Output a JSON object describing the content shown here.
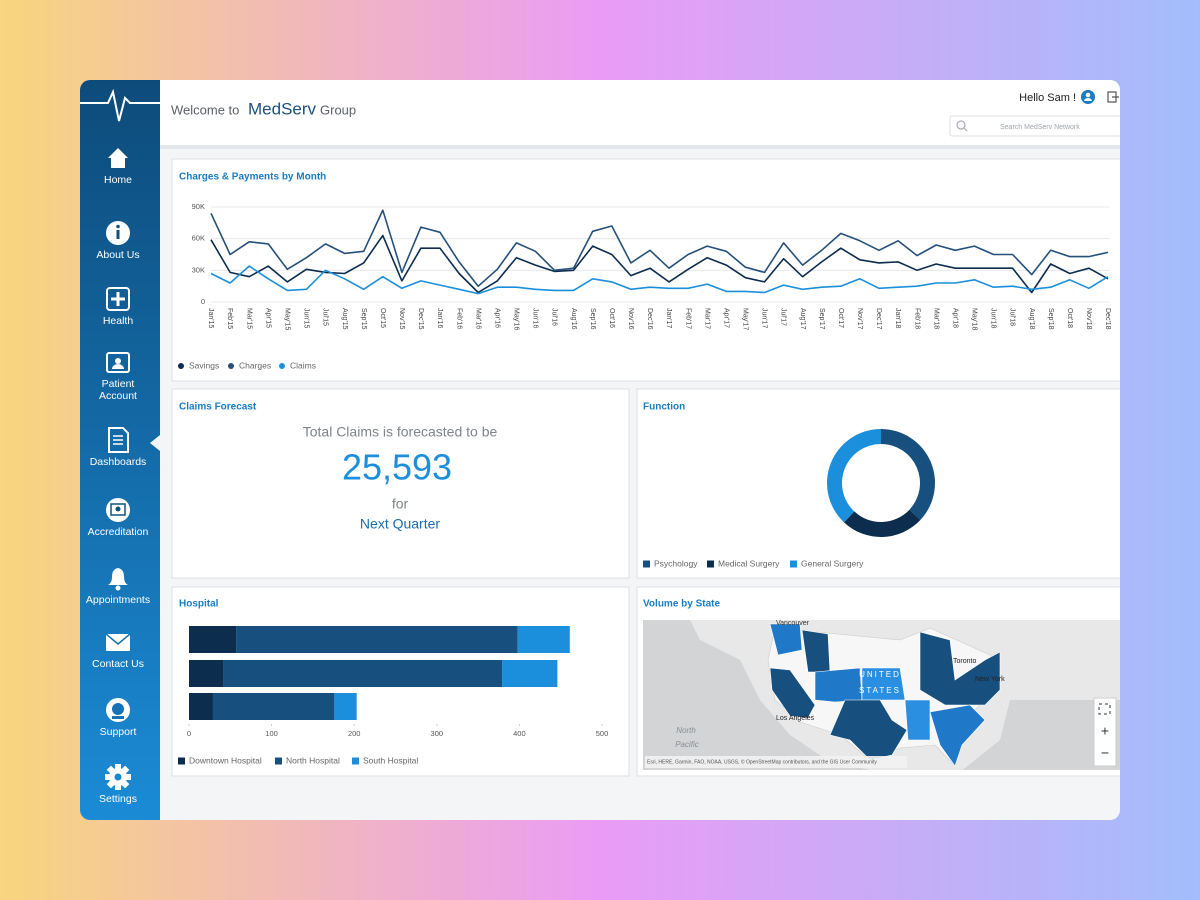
{
  "header": {
    "welcome": "Welcome to",
    "brand": "MedServ",
    "brand_suffix": "Group",
    "greeting": "Hello Sam !",
    "search_placeholder": "Search MedServ Network"
  },
  "sidebar": {
    "items": [
      [
        "Home"
      ],
      [
        "About Us"
      ],
      [
        "Health"
      ],
      [
        "Patient",
        "Account"
      ],
      [
        "Dashboards"
      ],
      [
        "Accreditation"
      ],
      [
        "Appointments"
      ],
      [
        "Contact Us"
      ],
      [
        "Support"
      ],
      [
        "Settings"
      ]
    ]
  },
  "forecast": {
    "title": "Claims Forecast",
    "lead": "Total Claims is forecasted to be",
    "value": "25,593",
    "connector": "for",
    "period": "Next Quarter"
  },
  "map": {
    "title": "Volume by State",
    "labels": [
      "Vancouver",
      "UNITED",
      "STATES",
      "Toronto",
      "New York",
      "Los Angeles",
      "North",
      "Pacific"
    ],
    "attribution": "Esri, HERE, Garmin, FAO, NOAA, USGS, © OpenStreetMap contributors, and the GIS User Community",
    "controls": [
      "+",
      "−"
    ]
  },
  "chart_data": [
    {
      "type": "line",
      "title": "Charges & Payments by Month",
      "categories": [
        "Jan'15",
        "Feb'15",
        "Mar'15",
        "Apr'15",
        "May'15",
        "Jun'15",
        "Jul'15",
        "Aug'15",
        "Sep'15",
        "Oct'15",
        "Nov'15",
        "Dec'15",
        "Jan'16",
        "Feb'16",
        "Mar'16",
        "Apr'16",
        "May'16",
        "Jun'16",
        "Jul'16",
        "Aug'16",
        "Sep'16",
        "Oct'16",
        "Nov'16",
        "Dec'16",
        "Jan'17",
        "Feb'17",
        "Mar'17",
        "Apr'17",
        "May'17",
        "Jun'17",
        "Jul'17",
        "Aug'17",
        "Sep'17",
        "Oct'17",
        "Nov'17",
        "Dec'17",
        "Jan'18",
        "Feb'18",
        "Mar'18",
        "Apr'18",
        "May'18",
        "Jun'18",
        "Jul'18",
        "Aug'18",
        "Sep'18",
        "Oct'18",
        "Nov'18",
        "Dec'18"
      ],
      "series": [
        {
          "name": "Savings",
          "color": "#0c2d4e",
          "values": [
            59000,
            28000,
            24000,
            34000,
            19000,
            31000,
            28000,
            27000,
            37000,
            63000,
            20000,
            51000,
            51000,
            27000,
            9000,
            20000,
            42000,
            35000,
            29000,
            30000,
            53000,
            45000,
            25000,
            32000,
            19000,
            31000,
            42000,
            35000,
            23000,
            19000,
            41000,
            24000,
            38000,
            51000,
            40000,
            37000,
            38000,
            30000,
            36000,
            32000,
            32000,
            32000,
            32000,
            9000,
            36000,
            27000,
            32000,
            22000
          ]
        },
        {
          "name": "Charges",
          "color": "#24507a",
          "values": [
            84000,
            45000,
            57000,
            55000,
            31000,
            42000,
            55000,
            46000,
            48000,
            87000,
            28000,
            71000,
            66000,
            38000,
            15000,
            31000,
            56000,
            48000,
            30000,
            32000,
            67000,
            72000,
            37000,
            49000,
            32000,
            45000,
            53000,
            48000,
            33000,
            28000,
            56000,
            35000,
            49000,
            65000,
            58000,
            49000,
            58000,
            44000,
            54000,
            49000,
            53000,
            45000,
            45000,
            26000,
            49000,
            43000,
            43000,
            47000
          ]
        },
        {
          "name": "Claims",
          "color": "#1b8fdc",
          "values": [
            27000,
            18000,
            34000,
            22000,
            11000,
            12000,
            30000,
            22000,
            12000,
            24000,
            13000,
            20000,
            16000,
            12000,
            8000,
            14000,
            14000,
            12000,
            11000,
            11000,
            22000,
            19000,
            12000,
            14000,
            13000,
            13000,
            17000,
            10000,
            10000,
            9000,
            16000,
            12000,
            14000,
            15000,
            22000,
            13000,
            14000,
            15000,
            18000,
            18000,
            21000,
            14000,
            15000,
            12000,
            14000,
            21000,
            13000,
            24000
          ]
        }
      ],
      "ylim": [
        0,
        90000
      ],
      "yticks": [
        0,
        {
          "value": 30000,
          "label": "30K"
        },
        {
          "value": 60000,
          "label": "60K"
        },
        {
          "value": 90000,
          "label": "90K"
        }
      ],
      "grid": true
    },
    {
      "type": "pie",
      "title": "Function",
      "donut": true,
      "categories": [
        "Psychology",
        "Medical Surgery",
        "General Surgery"
      ],
      "values": [
        37,
        25,
        38
      ],
      "colors": [
        "#17507e",
        "#0c2d4e",
        "#1b8fdc"
      ]
    },
    {
      "type": "bar",
      "title": "Hospital",
      "orientation": "horizontal",
      "stacked": true,
      "categories": [
        null,
        null,
        null
      ],
      "series": [
        {
          "name": "Downtown Hospital",
          "color": "#0c2d4e",
          "values": [
            57,
            42,
            29
          ]
        },
        {
          "name": "North Hospital",
          "color": "#17507e",
          "values": [
            341,
            337,
            147
          ]
        },
        {
          "name": "South Hospital",
          "color": "#1b8fdc",
          "values": [
            63,
            67,
            27
          ]
        }
      ],
      "xlim": [
        0,
        500
      ],
      "xticks": [
        0,
        100,
        200,
        300,
        400,
        500
      ]
    }
  ]
}
